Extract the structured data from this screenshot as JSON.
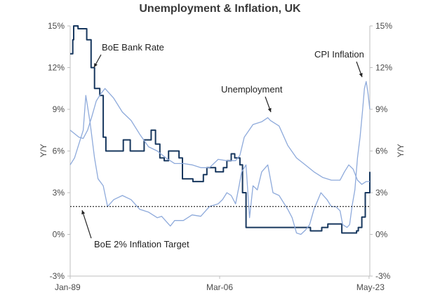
{
  "chart_data": {
    "type": "line",
    "title": "Unemployment & Inflation, UK",
    "ylabel_left": "Y/Y",
    "ylabel_right": "Y/Y",
    "ylim": [
      -3,
      15
    ],
    "yticks": [
      "-3%",
      "0%",
      "3%",
      "6%",
      "9%",
      "12%",
      "15%"
    ],
    "ytick_values": [
      -3,
      0,
      3,
      6,
      9,
      12,
      15
    ],
    "xlim": [
      1989.0,
      2023.42
    ],
    "xtick_labels": [
      "Jan-89",
      "Mar-06",
      "May-23"
    ],
    "xtick_values": [
      1989.0,
      2006.17,
      2023.33
    ],
    "grid": false,
    "colors": {
      "boe_rate": "#17375e",
      "cpi": "#8eaadb",
      "unemployment": "#8eaadb",
      "target": "#000000",
      "axis": "#bfbfbf"
    },
    "annotations": [
      {
        "name": "boe-bank-rate-label",
        "text": "BoE Bank Rate"
      },
      {
        "name": "unemployment-label",
        "text": "Unemployment"
      },
      {
        "name": "cpi-inflation-label",
        "text": "CPI Inflation"
      },
      {
        "name": "inflation-target-label",
        "text": "BoE 2% Inflation Target"
      }
    ],
    "series": [
      {
        "name": "BoE Bank Rate",
        "key": "boe_rate",
        "step": true,
        "x": [
          1989.0,
          1989.3,
          1989.4,
          1989.9,
          1990.9,
          1991.4,
          1991.8,
          1992.4,
          1992.8,
          1993.1,
          1994.7,
          1995.1,
          1995.9,
          1996.5,
          1997.5,
          1998.3,
          1998.8,
          1999.3,
          1999.8,
          2000.3,
          2001.5,
          2001.9,
          2003.1,
          2004.3,
          2004.7,
          2005.7,
          2006.6,
          2007.0,
          2007.5,
          2007.9,
          2008.5,
          2008.8,
          2009.2,
          2016.6,
          2017.9,
          2018.6,
          2020.2,
          2021.9,
          2022.1,
          2022.5,
          2022.9,
          2023.42
        ],
        "y": [
          13.0,
          14.0,
          15.0,
          14.8,
          14.0,
          12.0,
          10.5,
          10.0,
          7.0,
          6.0,
          6.0,
          6.8,
          6.0,
          6.0,
          6.8,
          7.5,
          6.5,
          5.5,
          5.3,
          6.0,
          5.5,
          4.0,
          3.8,
          4.3,
          4.8,
          4.5,
          4.8,
          5.3,
          5.8,
          5.5,
          5.0,
          3.0,
          0.5,
          0.25,
          0.5,
          0.75,
          0.1,
          0.25,
          0.5,
          1.25,
          3.0,
          4.5
        ]
      },
      {
        "name": "CPI Inflation",
        "key": "cpi",
        "x": [
          1989.0,
          1989.5,
          1990.0,
          1990.5,
          1990.8,
          1991.3,
          1991.8,
          1992.2,
          1992.8,
          1993.3,
          1994.0,
          1995.0,
          1996.0,
          1997.0,
          1998.0,
          1999.0,
          1999.5,
          2000.5,
          2001.0,
          2002.0,
          2003.0,
          2004.0,
          2005.0,
          2006.0,
          2006.5,
          2007.0,
          2007.5,
          2008.0,
          2008.4,
          2008.7,
          2009.2,
          2009.6,
          2010.0,
          2010.5,
          2011.0,
          2011.7,
          2012.3,
          2013.0,
          2014.0,
          2014.5,
          2015.0,
          2015.5,
          2016.0,
          2016.5,
          2017.0,
          2017.8,
          2018.5,
          2019.0,
          2019.5,
          2020.0,
          2020.3,
          2020.8,
          2021.1,
          2021.4,
          2021.7,
          2022.0,
          2022.3,
          2022.6,
          2022.8,
          2023.0,
          2023.2,
          2023.42
        ],
        "y": [
          5.0,
          5.5,
          6.5,
          7.5,
          10.0,
          8.0,
          5.5,
          4.0,
          3.5,
          2.0,
          2.5,
          2.8,
          2.5,
          1.8,
          1.6,
          1.2,
          1.3,
          0.6,
          1.0,
          1.0,
          1.4,
          1.3,
          2.0,
          2.2,
          2.5,
          3.0,
          2.8,
          2.2,
          3.5,
          4.5,
          5.0,
          1.2,
          3.5,
          3.2,
          4.5,
          5.0,
          3.0,
          2.8,
          1.8,
          1.2,
          0.1,
          0.0,
          0.3,
          0.7,
          1.8,
          3.0,
          2.5,
          2.0,
          2.0,
          1.7,
          0.7,
          0.5,
          0.7,
          2.1,
          3.2,
          5.5,
          7.0,
          9.0,
          10.5,
          11.0,
          10.2,
          9.0
        ]
      },
      {
        "name": "Unemployment",
        "key": "unemployment",
        "x": [
          1989.0,
          1990.0,
          1990.5,
          1991.0,
          1991.5,
          1992.0,
          1992.5,
          1993.0,
          1994.0,
          1995.0,
          1996.0,
          1997.0,
          1998.0,
          1999.0,
          2000.0,
          2001.0,
          2002.0,
          2003.0,
          2004.0,
          2005.0,
          2006.0,
          2007.0,
          2008.0,
          2008.5,
          2009.0,
          2010.0,
          2011.0,
          2011.7,
          2012.0,
          2013.0,
          2014.0,
          2015.0,
          2016.0,
          2017.0,
          2018.0,
          2019.0,
          2020.0,
          2020.5,
          2021.0,
          2021.5,
          2022.0,
          2022.5,
          2023.0,
          2023.42
        ],
        "y": [
          7.5,
          7.0,
          6.9,
          7.5,
          8.5,
          9.6,
          10.1,
          10.5,
          9.8,
          8.8,
          8.2,
          7.2,
          6.3,
          6.0,
          5.5,
          5.1,
          5.1,
          5.0,
          4.8,
          4.8,
          5.4,
          5.3,
          5.3,
          5.7,
          7.0,
          7.9,
          8.1,
          8.4,
          8.2,
          7.8,
          6.4,
          5.5,
          5.0,
          4.5,
          4.1,
          3.9,
          3.9,
          4.5,
          5.0,
          4.7,
          3.9,
          3.6,
          3.8,
          3.8
        ]
      },
      {
        "name": "BoE 2% Inflation Target",
        "key": "target",
        "dashed": true,
        "x": [
          1989.0,
          2023.42
        ],
        "y": [
          2.0,
          2.0
        ]
      }
    ]
  }
}
